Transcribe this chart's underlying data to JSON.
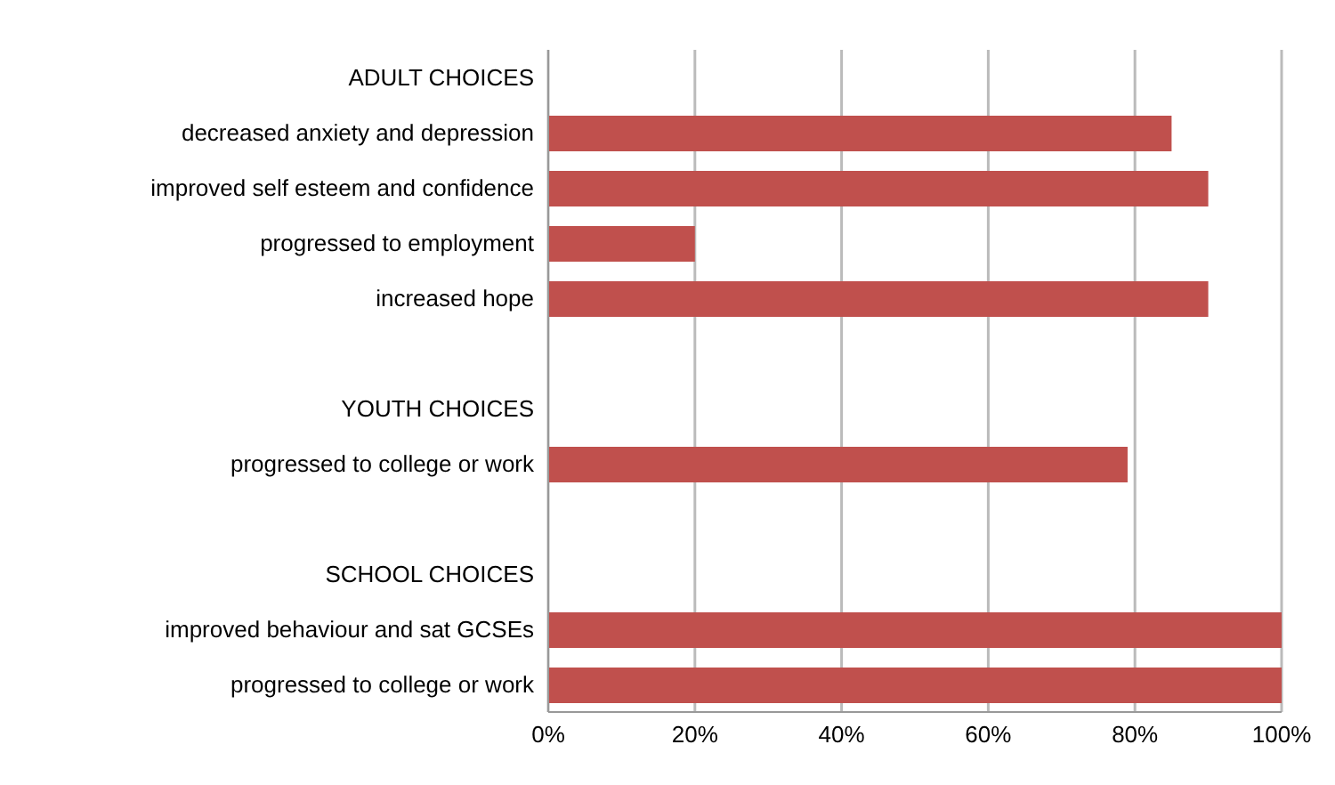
{
  "chart_data": {
    "type": "bar",
    "orientation": "horizontal",
    "categories": [
      "ADULT CHOICES",
      "decreased anxiety and depression",
      "improved self esteem and confidence",
      "progressed to employment",
      "increased hope",
      null,
      "YOUTH CHOICES",
      "progressed to college or work",
      null,
      "SCHOOL CHOICES",
      "improved behaviour and sat GCSEs",
      "progressed to college or work"
    ],
    "values": [
      null,
      85,
      90,
      20,
      90,
      null,
      null,
      79,
      null,
      null,
      100,
      100
    ],
    "color": "#c0504d",
    "xlim": [
      0,
      100
    ],
    "xticks": [
      {
        "value": 0,
        "label": "0%"
      },
      {
        "value": 20,
        "label": "20%"
      },
      {
        "value": 40,
        "label": "40%"
      },
      {
        "value": 60,
        "label": "60%"
      },
      {
        "value": 80,
        "label": "80%"
      },
      {
        "value": 100,
        "label": "100%"
      }
    ],
    "grid": "x"
  }
}
